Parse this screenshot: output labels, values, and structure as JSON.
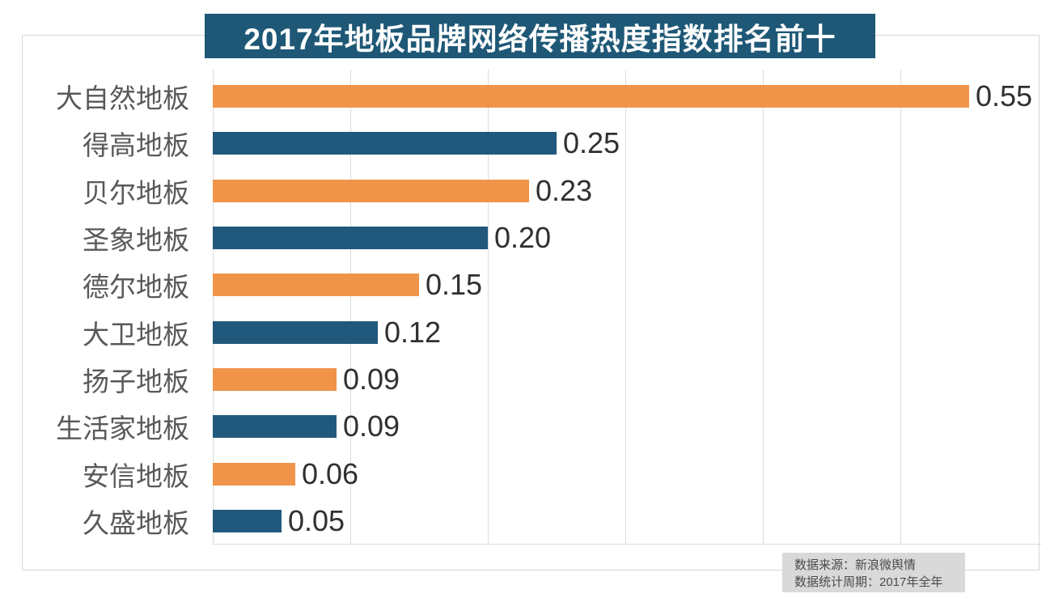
{
  "title": "2017年地板品牌网络传播热度指数排名前十",
  "source_note": {
    "line1": "数据来源：新浪微舆情",
    "line2": "数据统计周期：2017年全年"
  },
  "colors": {
    "banner_bg": "#1e5876",
    "bar_orange": "#f0944a",
    "bar_blue": "#20597b",
    "gridline": "#dcdcdc",
    "category_label": "#595959",
    "value_label": "#303030",
    "note_bg": "#d9d9d9"
  },
  "chart_data": {
    "type": "bar",
    "orientation": "horizontal",
    "title": "2017年地板品牌网络传播热度指数排名前十",
    "categories": [
      "大自然地板",
      "得高地板",
      "贝尔地板",
      "圣象地板",
      "德尔地板",
      "大卫地板",
      "扬子地板",
      "生活家地板",
      "安信地板",
      "久盛地板"
    ],
    "values": [
      0.55,
      0.25,
      0.23,
      0.2,
      0.15,
      0.12,
      0.09,
      0.09,
      0.06,
      0.05
    ],
    "value_labels": [
      "0.55",
      "0.25",
      "0.23",
      "0.20",
      "0.15",
      "0.12",
      "0.09",
      "0.09",
      "0.06",
      "0.05"
    ],
    "bar_color_pattern": [
      "orange",
      "blue"
    ],
    "xlabel": "",
    "ylabel": "",
    "xlim": [
      0,
      0.6
    ],
    "gridline_values": [
      0,
      0.1,
      0.2,
      0.3,
      0.4,
      0.5
    ],
    "grid": true,
    "legend": false
  }
}
